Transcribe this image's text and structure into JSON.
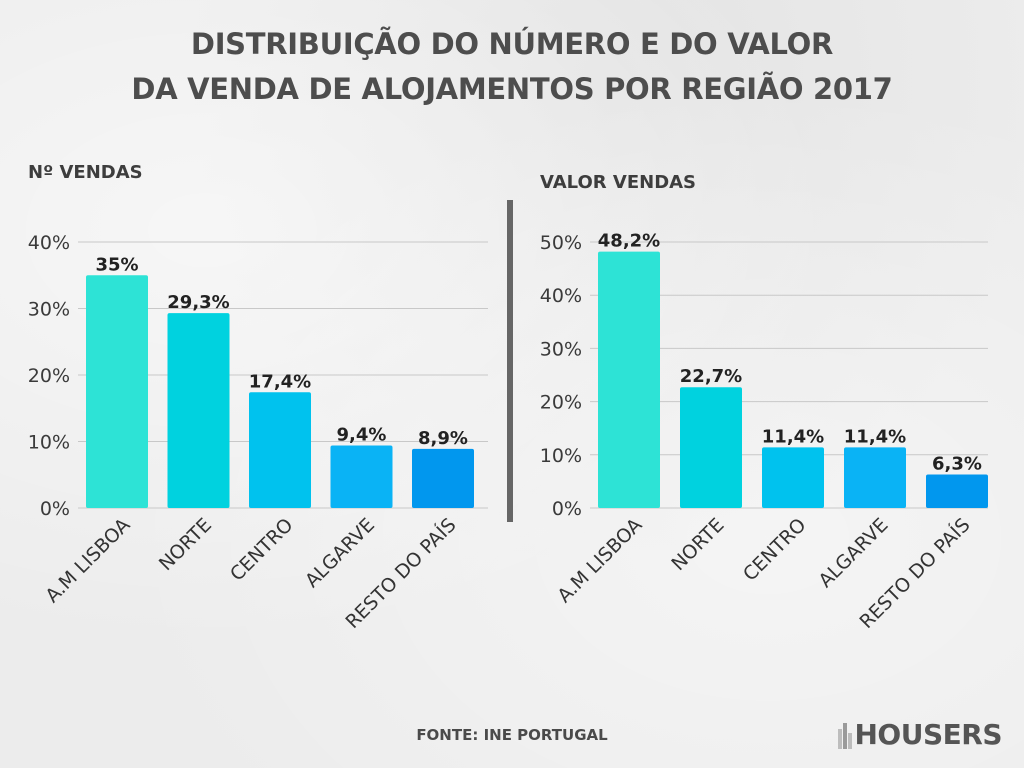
{
  "title_line1": "DISTRIBUIÇÃO DO NÚMERO E DO VALOR",
  "title_line2": "DA VENDA DE ALOJAMENTOS POR REGIÃO 2017",
  "footer": "FONTE: INE PORTUGAL",
  "logo_text": "HOUSERS",
  "colors": [
    "#2de3d6",
    "#00d2df",
    "#00c2ee",
    "#0ab3f5",
    "#0197ee"
  ],
  "chart_data": [
    {
      "type": "bar",
      "title": "Nº VENDAS",
      "categories": [
        "A.M LISBOA",
        "NORTE",
        "CENTRO",
        "ALGARVE",
        "RESTO DO PAÍS"
      ],
      "values": [
        35,
        29.3,
        17.4,
        9.4,
        8.9
      ],
      "value_labels": [
        "35%",
        "29,3%",
        "17,4%",
        "9,4%",
        "8,9%"
      ],
      "yticks": [
        "0%",
        "10%",
        "20%",
        "30%",
        "40%"
      ],
      "ylim": [
        0,
        40
      ],
      "grid": true
    },
    {
      "type": "bar",
      "title": "VALOR VENDAS",
      "categories": [
        "A.M LISBOA",
        "NORTE",
        "CENTRO",
        "ALGARVE",
        "RESTO DO PAÍS"
      ],
      "values": [
        48.2,
        22.7,
        11.4,
        11.4,
        6.3
      ],
      "value_labels": [
        "48,2%",
        "22,7%",
        "11,4%",
        "11,4%",
        "6,3%"
      ],
      "yticks": [
        "0%",
        "10%",
        "20%",
        "30%",
        "40%",
        "50%"
      ],
      "ylim": [
        0,
        50
      ],
      "grid": true
    }
  ]
}
